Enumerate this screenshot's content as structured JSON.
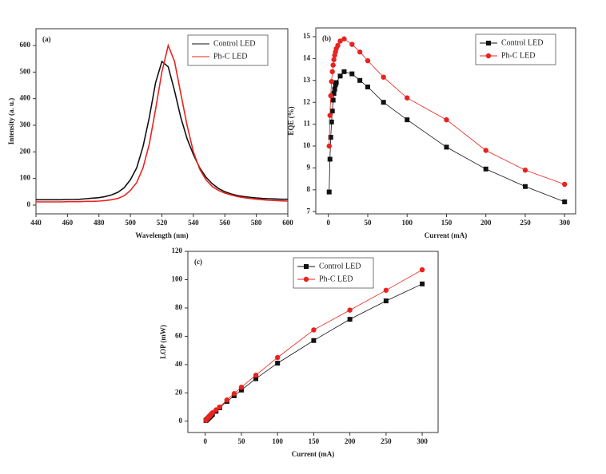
{
  "chart_data": [
    {
      "type": "line",
      "panel_label": "(a)",
      "xlabel": "Wavelength (nm)",
      "ylabel": "Intensity (a. u.)",
      "xlim": [
        440,
        600
      ],
      "xticks": [
        440,
        460,
        480,
        500,
        520,
        540,
        560,
        580,
        600
      ],
      "ylim": [
        -33,
        663
      ],
      "yticks": [
        0,
        100,
        200,
        300,
        400,
        500,
        600
      ],
      "legend": "upper right",
      "series": [
        {
          "name": "Control LED",
          "color": "#111111",
          "marker": null,
          "x": [
            440,
            444,
            448,
            452,
            456,
            460,
            464,
            468,
            472,
            476,
            480,
            484,
            488,
            492,
            496,
            500,
            504,
            508,
            512,
            516,
            520,
            524,
            528,
            532,
            536,
            540,
            544,
            548,
            552,
            556,
            560,
            564,
            568,
            572,
            576,
            580,
            584,
            588,
            592,
            596,
            600
          ],
          "values": [
            20,
            20,
            20,
            20,
            20,
            21,
            21,
            22,
            24,
            26,
            28,
            32,
            38,
            48,
            65,
            95,
            140,
            220,
            330,
            460,
            540,
            520,
            430,
            330,
            250,
            190,
            140,
            105,
            80,
            62,
            50,
            42,
            36,
            32,
            29,
            27,
            25,
            24,
            23,
            22,
            22
          ]
        },
        {
          "name": "Ph-C LED",
          "color": "#e8231f",
          "marker": null,
          "x": [
            440,
            444,
            448,
            452,
            456,
            460,
            464,
            468,
            472,
            476,
            480,
            484,
            488,
            492,
            496,
            500,
            504,
            508,
            512,
            516,
            520,
            524,
            528,
            532,
            536,
            540,
            544,
            548,
            552,
            556,
            560,
            564,
            568,
            572,
            576,
            580,
            584,
            588,
            592,
            596,
            600
          ],
          "values": [
            12,
            12,
            12,
            12,
            12,
            13,
            13,
            13,
            14,
            14,
            15,
            17,
            20,
            25,
            35,
            55,
            85,
            140,
            230,
            360,
            500,
            600,
            540,
            420,
            300,
            200,
            135,
            95,
            70,
            55,
            45,
            38,
            32,
            28,
            25,
            22,
            20,
            18,
            17,
            16,
            15
          ]
        }
      ]
    },
    {
      "type": "line",
      "panel_label": "(b)",
      "xlabel": "Current (mA)",
      "ylabel": "EQE (%)",
      "xlim": [
        -16,
        314
      ],
      "xticks": [
        0,
        50,
        100,
        150,
        200,
        250,
        300
      ],
      "ylim": [
        6.9,
        15.4
      ],
      "yticks": [
        7,
        8,
        9,
        10,
        11,
        12,
        13,
        14,
        15
      ],
      "legend": "upper right",
      "series": [
        {
          "name": "Control LED",
          "color": "#111111",
          "marker": "square",
          "x": [
            1,
            2,
            3,
            4,
            5,
            6,
            7,
            8,
            9,
            10,
            15,
            20,
            30,
            40,
            50,
            70,
            100,
            150,
            200,
            250,
            300
          ],
          "values": [
            7.9,
            9.4,
            10.4,
            11.1,
            11.6,
            12.1,
            12.4,
            12.6,
            12.8,
            12.9,
            13.2,
            13.4,
            13.3,
            13.0,
            12.7,
            12.0,
            11.2,
            9.95,
            8.95,
            8.15,
            7.45
          ]
        },
        {
          "name": "Ph-C LED",
          "color": "#e8231f",
          "marker": "circle",
          "x": [
            1,
            2,
            3,
            4,
            5,
            6,
            7,
            8,
            9,
            10,
            12,
            15,
            20,
            30,
            40,
            50,
            70,
            100,
            150,
            200,
            250,
            300
          ],
          "values": [
            10.0,
            11.4,
            12.3,
            12.95,
            13.4,
            13.7,
            13.95,
            14.15,
            14.3,
            14.45,
            14.6,
            14.8,
            14.9,
            14.65,
            14.3,
            13.9,
            13.15,
            12.2,
            11.2,
            9.8,
            8.9,
            8.25
          ]
        }
      ]
    },
    {
      "type": "line",
      "panel_label": "(c)",
      "xlabel": "Current (mA)",
      "ylabel": "LOP (mW)",
      "xlim": [
        -24,
        322
      ],
      "xticks": [
        0,
        50,
        100,
        150,
        200,
        250,
        300
      ],
      "ylim": [
        -8,
        120
      ],
      "yticks": [
        0,
        20,
        40,
        60,
        80,
        100,
        120
      ],
      "legend": "upper left",
      "series": [
        {
          "name": "Control LED",
          "color": "#111111",
          "marker": "square",
          "x": [
            1,
            2,
            3,
            4,
            5,
            6,
            7,
            8,
            9,
            10,
            15,
            20,
            30,
            40,
            50,
            70,
            100,
            150,
            200,
            250,
            300
          ],
          "values": [
            0.5,
            1,
            1.5,
            2,
            2.5,
            3,
            3.5,
            4,
            4.5,
            5,
            7,
            9.5,
            14,
            18,
            22,
            30,
            41,
            57,
            72,
            85,
            97
          ]
        },
        {
          "name": "Ph-C LED",
          "color": "#e8231f",
          "marker": "circle",
          "x": [
            1,
            2,
            3,
            4,
            5,
            6,
            7,
            8,
            9,
            10,
            15,
            20,
            30,
            40,
            50,
            70,
            100,
            150,
            200,
            250,
            300
          ],
          "values": [
            0.6,
            1.2,
            1.8,
            2.4,
            3,
            3.6,
            4.2,
            4.8,
            5.4,
            6,
            8,
            10,
            15,
            19.5,
            24,
            32.5,
            45,
            64.5,
            78.5,
            92.5,
            107
          ]
        }
      ]
    }
  ]
}
